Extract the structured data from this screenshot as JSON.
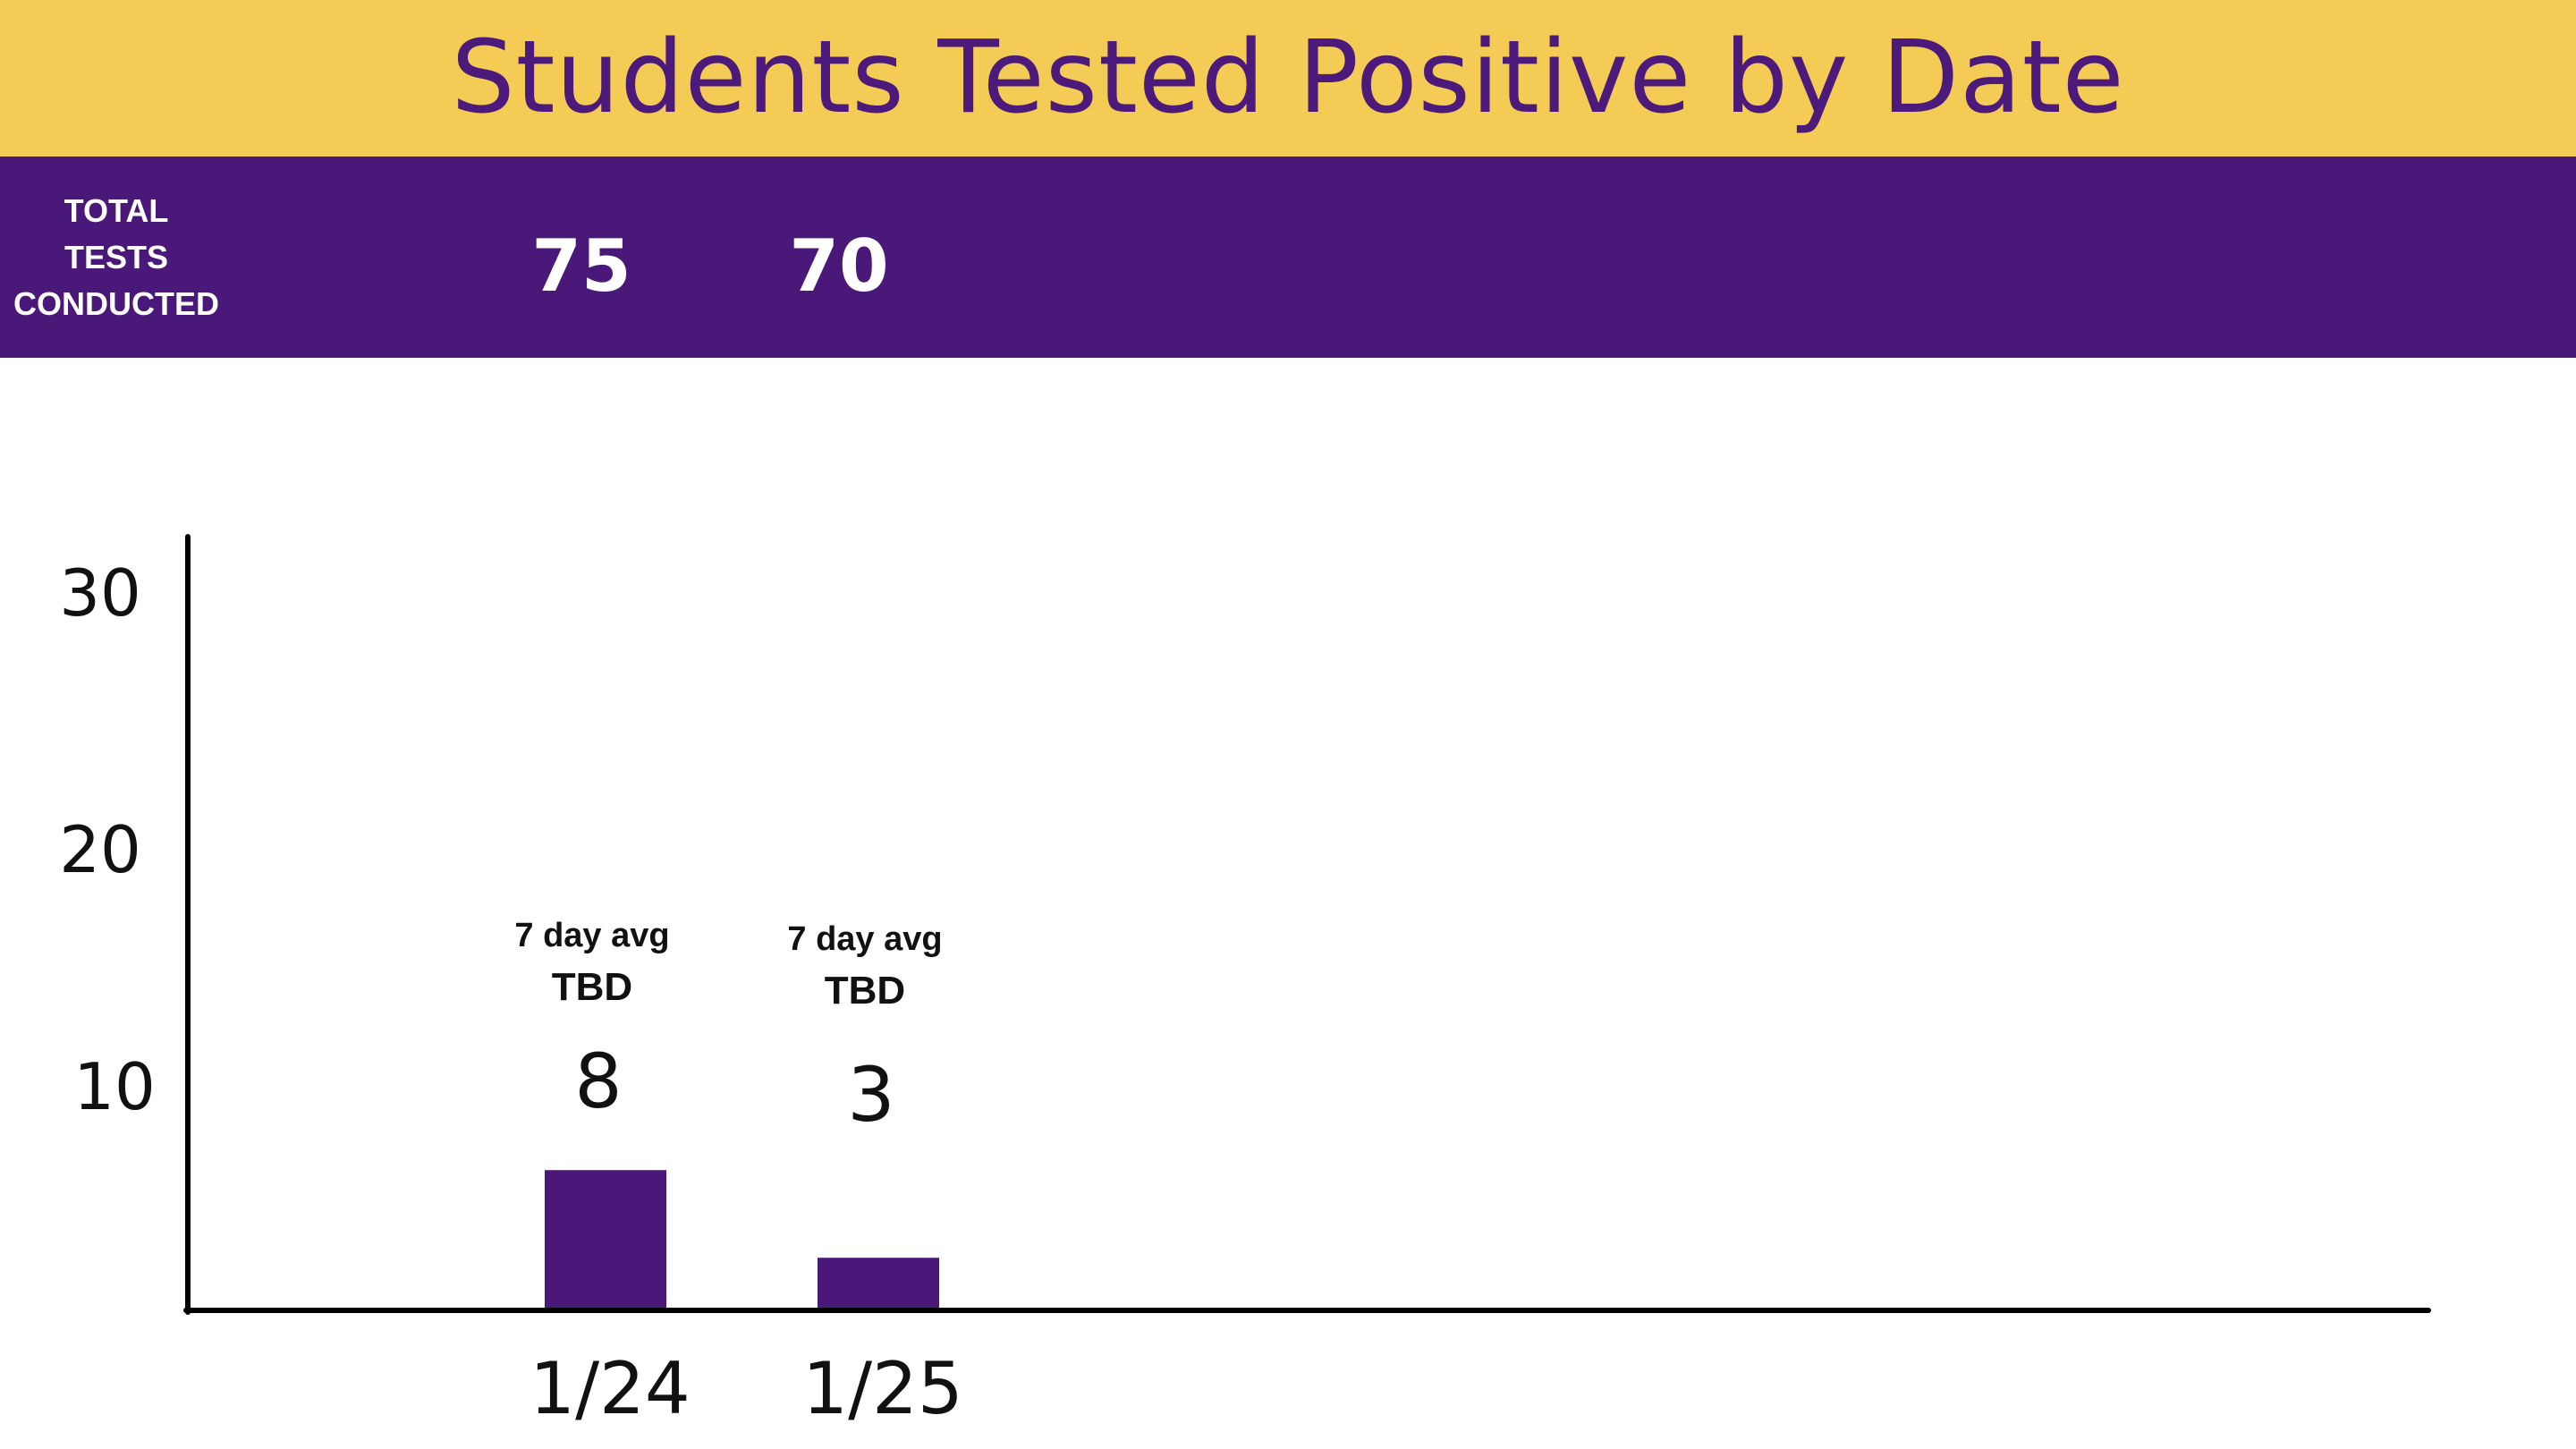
{
  "title": "Students Tested Positive by Date",
  "tests": {
    "label": "TOTAL\nTESTS\nCONDUCTED",
    "counts": [
      "75",
      "70"
    ]
  },
  "colors": {
    "title_band": "#f4cb55",
    "title_text": "#4c1a7a",
    "tests_band": "#4a1878",
    "bar": "#4a1878",
    "axis": "#000000"
  },
  "chart_data": {
    "type": "bar",
    "title": "Students Tested Positive by Date",
    "categories": [
      "1/24",
      "1/25"
    ],
    "values": [
      8,
      3
    ],
    "value_labels": [
      "8",
      "3"
    ],
    "annotations": [
      {
        "line1": "7 day avg",
        "line2": "TBD"
      },
      {
        "line1": "7 day avg",
        "line2": "TBD"
      }
    ],
    "yticks": [
      "10",
      "20",
      "30"
    ],
    "xlabel": "",
    "ylabel": "",
    "grid": false,
    "legend": "none"
  }
}
